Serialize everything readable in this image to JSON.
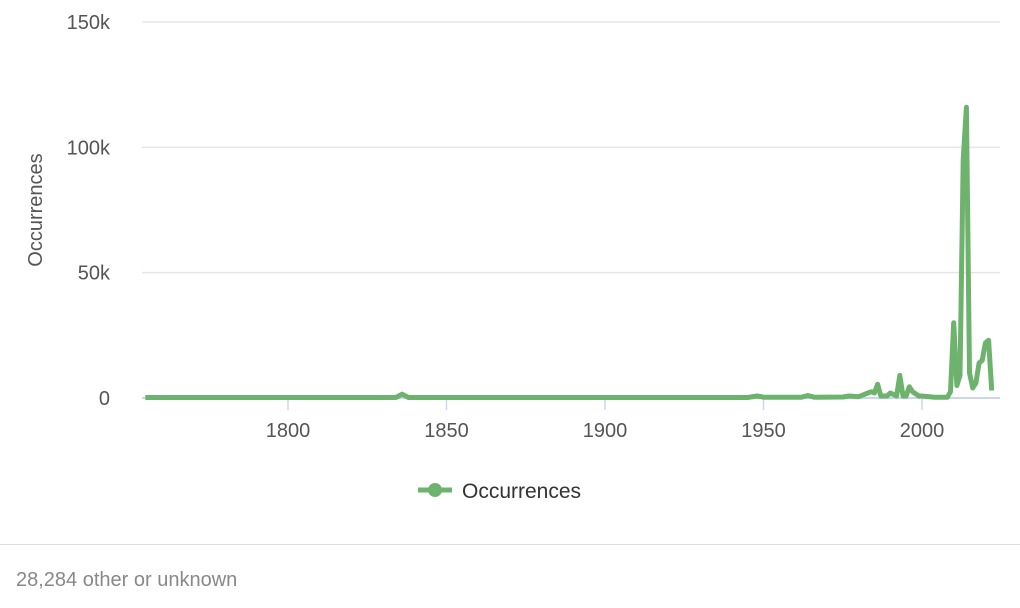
{
  "chart_data": {
    "type": "line",
    "ylabel": "Occurrences",
    "xlabel": "",
    "ylim": [
      0,
      150000
    ],
    "xlim": [
      1755,
      2022
    ],
    "yticks": [
      "0",
      "50k",
      "100k",
      "150k"
    ],
    "ytick_values": [
      0,
      50000,
      100000,
      150000
    ],
    "xticks": [
      "1800",
      "1850",
      "1900",
      "1950",
      "2000"
    ],
    "xtick_values": [
      1800,
      1850,
      1900,
      1950,
      2000
    ],
    "grid": true,
    "legend": "bottom",
    "color": "#6db36d",
    "series": [
      {
        "name": "Occurrences",
        "x": [
          1755,
          1834,
          1836,
          1838,
          1945,
          1948,
          1950,
          1962,
          1964,
          1966,
          1975,
          1977,
          1980,
          1982,
          1984,
          1985,
          1986,
          1987,
          1989,
          1990,
          1992,
          1993,
          1994,
          1995,
          1996,
          1997,
          1999,
          2000,
          2004,
          2008,
          2009,
          2010,
          2011,
          2012,
          2013,
          2014,
          2015,
          2016,
          2017,
          2018,
          2019,
          2020,
          2021,
          2022
        ],
        "y": [
          200,
          200,
          1500,
          200,
          200,
          800,
          300,
          300,
          1000,
          300,
          400,
          800,
          500,
          1500,
          2500,
          2000,
          5500,
          800,
          800,
          2000,
          800,
          9000,
          800,
          800,
          4500,
          2500,
          800,
          800,
          300,
          300,
          2500,
          30000,
          5000,
          9000,
          95000,
          116000,
          10000,
          4000,
          6000,
          14000,
          15000,
          22000,
          23000,
          3000
        ]
      }
    ]
  },
  "footer": {
    "text": "28,284 other or unknown"
  }
}
